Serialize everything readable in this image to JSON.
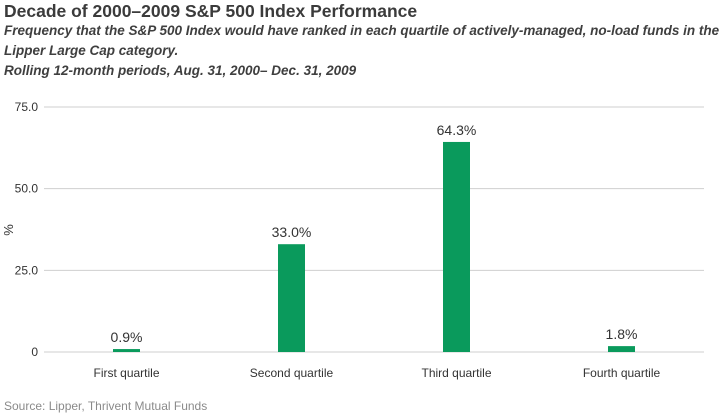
{
  "title": "Decade of 2000–2009 S&P 500 Index Performance",
  "subtitle_lines": [
    "Frequency that the S&P 500 Index would have ranked in each quartile of actively-managed, no-load funds in the",
    "Lipper Large Cap category.",
    "Rolling 12-month periods, Aug. 31, 2000– Dec. 31, 2009"
  ],
  "source": "Source: Lipper, Thrivent Mutual Funds",
  "colors": {
    "bar": "#0a9a5c",
    "grid": "#cfcfcf",
    "text": "#333333"
  },
  "chart_data": {
    "type": "bar",
    "categories": [
      "First quartile",
      "Second quartile",
      "Third quartile",
      "Fourth quartile"
    ],
    "values": [
      0.9,
      33.0,
      64.3,
      1.8
    ],
    "data_labels": [
      "0.9%",
      "33.0%",
      "64.3%",
      "1.8%"
    ],
    "ylabel": "%",
    "xlabel": "",
    "ylim": [
      0,
      75
    ],
    "yticks": [
      0,
      25,
      50,
      75
    ],
    "ytick_labels": [
      "0",
      "25.0",
      "50.0",
      "75.0"
    ],
    "grid": true,
    "legend": "none"
  }
}
